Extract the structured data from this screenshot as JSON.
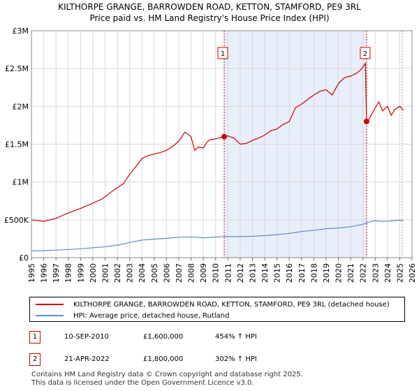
{
  "chart_data": {
    "type": "line",
    "title": "KILTHORPE GRANGE, BARROWDEN ROAD, KETTON, STAMFORD, PE9 3RL",
    "subtitle": "Price paid vs. HM Land Registry's House Price Index (HPI)",
    "xlim": [
      1995,
      2026
    ],
    "ylim": [
      0,
      3000000
    ],
    "x_ticks": [
      "1995",
      "1996",
      "1997",
      "1998",
      "1999",
      "2000",
      "2001",
      "2002",
      "2003",
      "2004",
      "2005",
      "2006",
      "2007",
      "2008",
      "2009",
      "2010",
      "2011",
      "2012",
      "2013",
      "2014",
      "2015",
      "2016",
      "2017",
      "2018",
      "2019",
      "2020",
      "2021",
      "2022",
      "2023",
      "2024",
      "2025",
      "2026"
    ],
    "y_ticks": [
      {
        "value": 0,
        "label": "£0"
      },
      {
        "value": 500000,
        "label": "£500K"
      },
      {
        "value": 1000000,
        "label": "£1M"
      },
      {
        "value": 1500000,
        "label": "£1.5M"
      },
      {
        "value": 2000000,
        "label": "£2M"
      },
      {
        "value": 2500000,
        "label": "£2.5M"
      },
      {
        "value": 3000000,
        "label": "£3M"
      }
    ],
    "shaded_period": [
      2010.7,
      2022.3
    ],
    "series": [
      {
        "name": "KILTHORPE GRANGE, BARROWDEN ROAD, KETTON, STAMFORD, PE9 3RL (detached house)",
        "color": "#cc0000",
        "x": [
          1995.0,
          1996.0,
          1997.0,
          1998.0,
          1999.0,
          2000.0,
          2000.8,
          2001.5,
          2002.5,
          2003.0,
          2003.5,
          2004.0,
          2004.5,
          2005.0,
          2005.5,
          2006.0,
          2006.5,
          2007.0,
          2007.5,
          2008.0,
          2008.3,
          2008.6,
          2009.0,
          2009.3,
          2009.6,
          2010.0,
          2010.7,
          2011.0,
          2011.5,
          2012.0,
          2012.5,
          2013.0,
          2013.5,
          2014.0,
          2014.5,
          2015.0,
          2015.5,
          2016.0,
          2016.5,
          2017.0,
          2017.5,
          2018.0,
          2018.5,
          2019.0,
          2019.5,
          2020.0,
          2020.5,
          2021.0,
          2021.5,
          2021.8,
          2022.0,
          2022.2,
          2022.3,
          2022.5,
          2022.8,
          2023.0,
          2023.3,
          2023.6,
          2024.0,
          2024.3,
          2024.6,
          2025.0,
          2025.3
        ],
        "y": [
          500000,
          480000,
          520000,
          590000,
          650000,
          720000,
          780000,
          870000,
          980000,
          1100000,
          1200000,
          1310000,
          1350000,
          1370000,
          1390000,
          1420000,
          1470000,
          1540000,
          1660000,
          1600000,
          1420000,
          1460000,
          1450000,
          1530000,
          1560000,
          1570000,
          1600000,
          1610000,
          1580000,
          1500000,
          1510000,
          1550000,
          1580000,
          1620000,
          1680000,
          1700000,
          1760000,
          1800000,
          1980000,
          2030000,
          2090000,
          2150000,
          2200000,
          2220000,
          2150000,
          2300000,
          2380000,
          2400000,
          2440000,
          2480000,
          2520000,
          2570000,
          1800000,
          1830000,
          1920000,
          1980000,
          2060000,
          1940000,
          2000000,
          1880000,
          1960000,
          2000000,
          1950000
        ]
      },
      {
        "name": "HPI: Average price, detached house, Rutland",
        "color": "#5b8ec9",
        "x": [
          1995.0,
          1996.0,
          1997.0,
          1998.0,
          1999.0,
          2000.0,
          2001.0,
          2002.0,
          2003.0,
          2004.0,
          2005.0,
          2006.0,
          2007.0,
          2008.0,
          2009.0,
          2010.0,
          2011.0,
          2012.0,
          2013.0,
          2014.0,
          2015.0,
          2016.0,
          2017.0,
          2018.0,
          2019.0,
          2020.0,
          2021.0,
          2022.0,
          2022.5,
          2023.0,
          2023.5,
          2024.0,
          2024.5,
          2025.0,
          2025.3
        ],
        "y": [
          90000,
          92000,
          100000,
          108000,
          118000,
          130000,
          145000,
          165000,
          200000,
          232000,
          245000,
          255000,
          270000,
          275000,
          262000,
          272000,
          280000,
          278000,
          282000,
          292000,
          305000,
          320000,
          345000,
          362000,
          382000,
          392000,
          408000,
          440000,
          470000,
          490000,
          478000,
          482000,
          488000,
          495000,
          492000
        ]
      }
    ],
    "transactions": [
      {
        "label": "1",
        "x": 2010.7,
        "y": 1600000,
        "date": "10-SEP-2010",
        "price": "£1,600,000",
        "hpi": "454% ↑ HPI"
      },
      {
        "label": "2",
        "x": 2022.3,
        "y": 1800000,
        "date": "21-APR-2022",
        "price": "£1,800,000",
        "hpi": "302% ↑ HPI"
      }
    ]
  },
  "legend": {
    "red_label": "KILTHORPE GRANGE, BARROWDEN ROAD, KETTON, STAMFORD, PE9 3RL (detached house)",
    "blue_label": "HPI: Average price, detached house, Rutland"
  },
  "footer": {
    "line1": "Contains HM Land Registry data © Crown copyright and database right 2025.",
    "line2": "This data is licensed under the Open Government Licence v3.0."
  },
  "colors": {
    "property": "#cc0000",
    "hpi": "#5b8ec9",
    "shade": "#e8eefa",
    "grid": "#d9d9d9"
  }
}
